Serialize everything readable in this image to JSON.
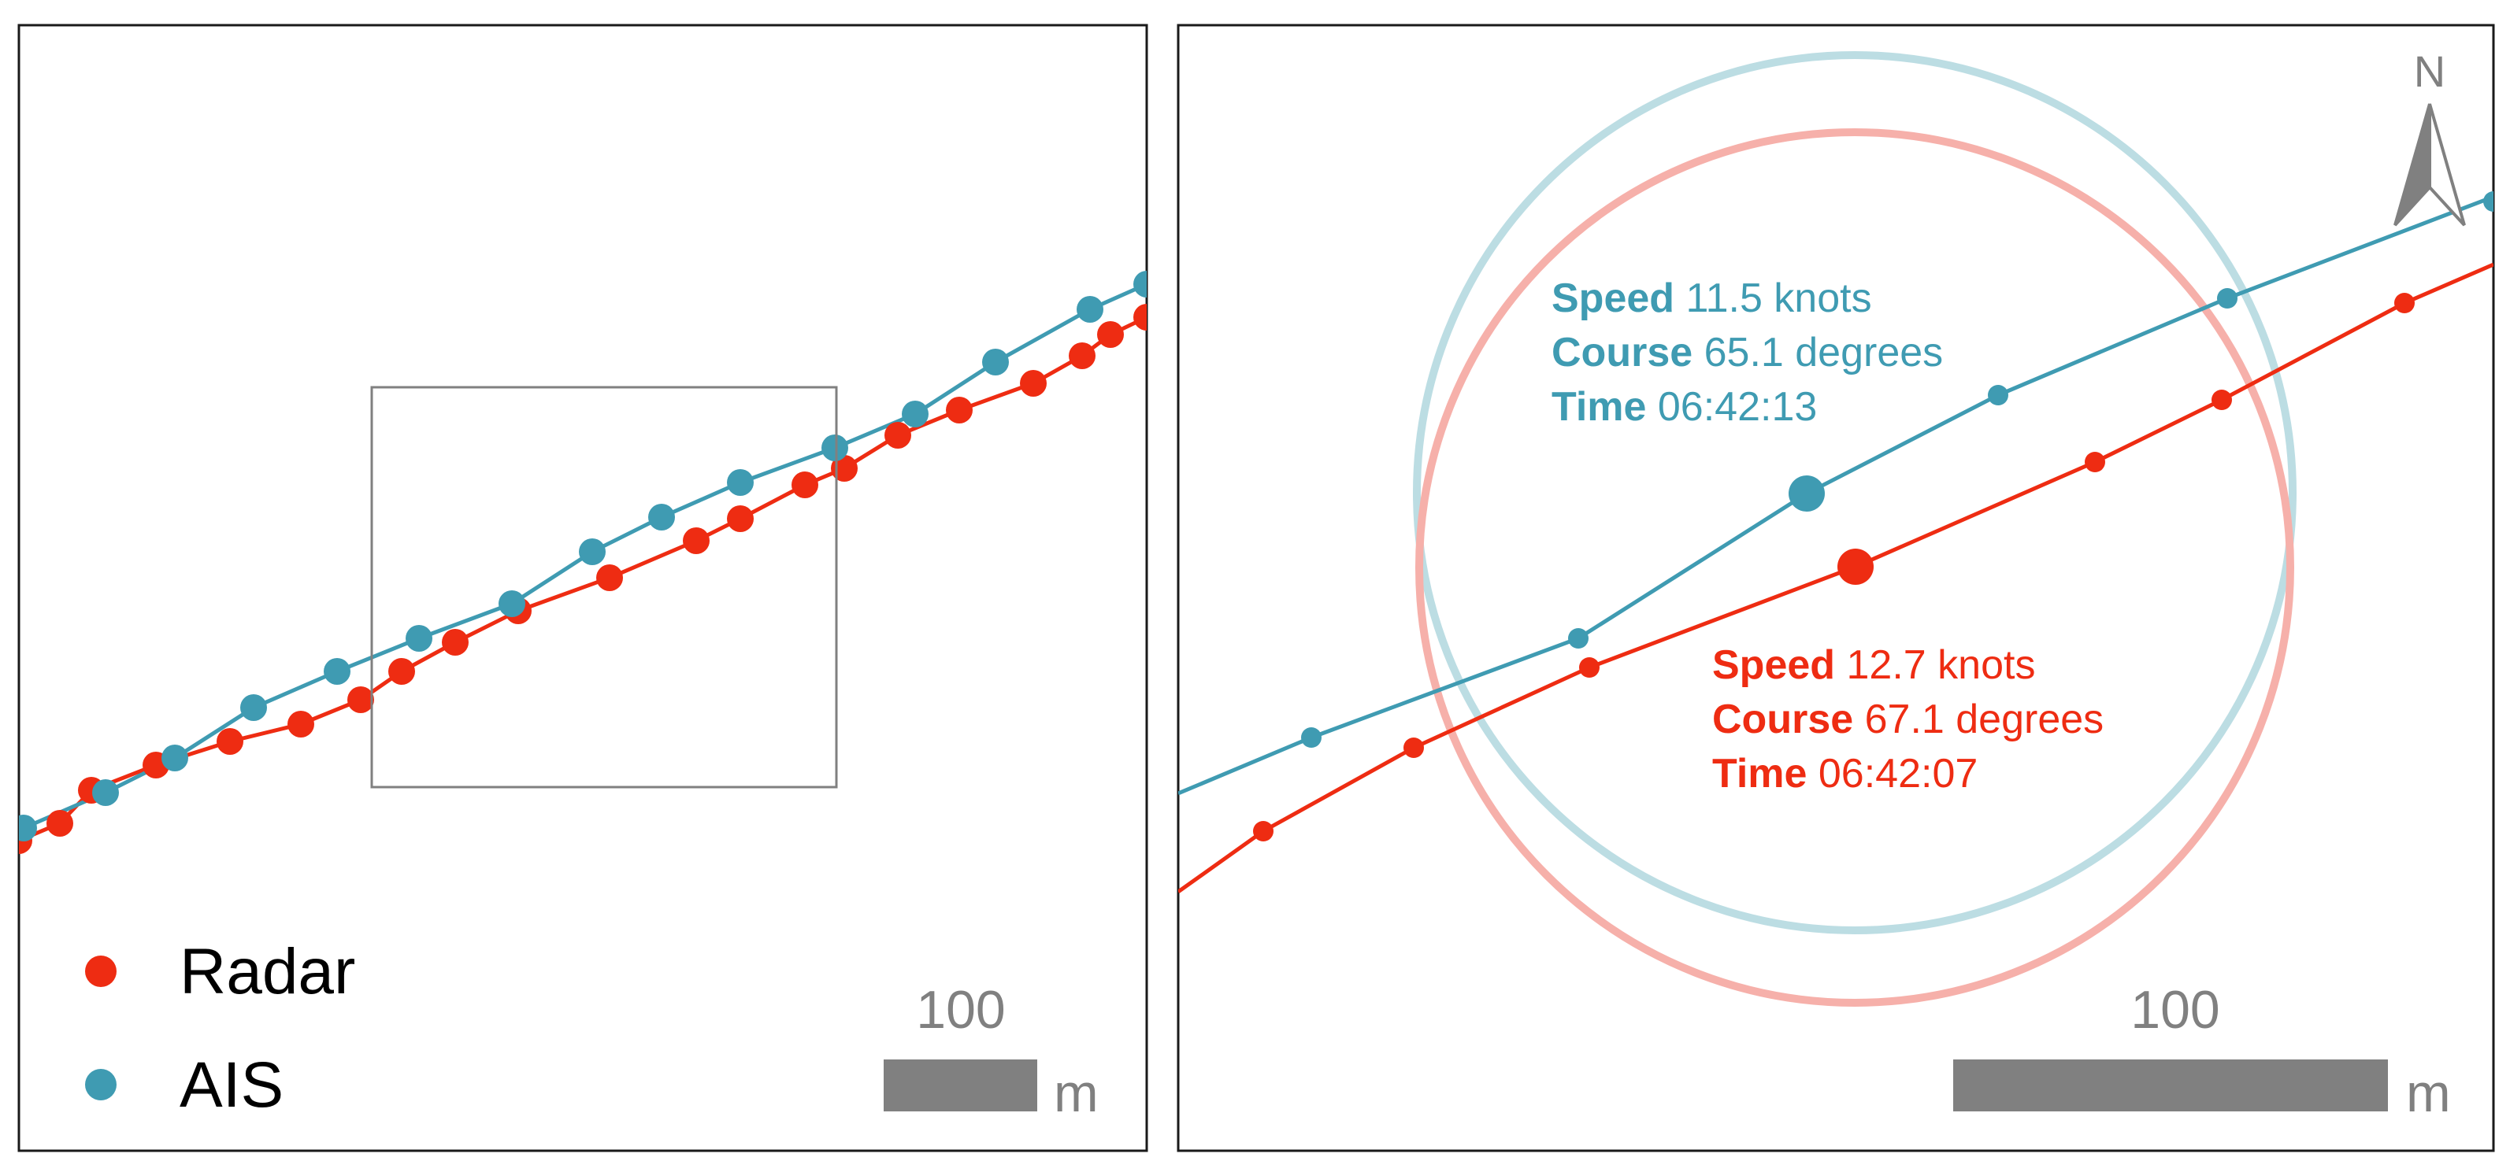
{
  "colors": {
    "radar": "#ee2c12",
    "ais": "#3f9bb2",
    "radar_circle": "#f6b0aa",
    "ais_circle": "#bcdde3",
    "scale_bar": "#808080",
    "frame": "#1a1a1a",
    "zoom_box": "#808080",
    "north_arrow": "#808080"
  },
  "overview": {
    "legend": {
      "radar_label": "Radar",
      "ais_label": "AIS"
    },
    "scale_bar": {
      "distance": "100",
      "unit": "m"
    }
  },
  "detail": {
    "north_label": "N",
    "ais_info": {
      "speed_key": "Speed",
      "speed_value": "11.5 knots",
      "course_key": "Course",
      "course_value": "65.1 degrees",
      "time_key": "Time",
      "time_value": "06:42:13"
    },
    "radar_info": {
      "speed_key": "Speed",
      "speed_value": "12.7 knots",
      "course_key": "Course",
      "course_value": "67.1 degrees",
      "time_key": "Time",
      "time_value": "06:42:07"
    },
    "scale_bar": {
      "distance": "100",
      "unit": "m"
    }
  }
}
